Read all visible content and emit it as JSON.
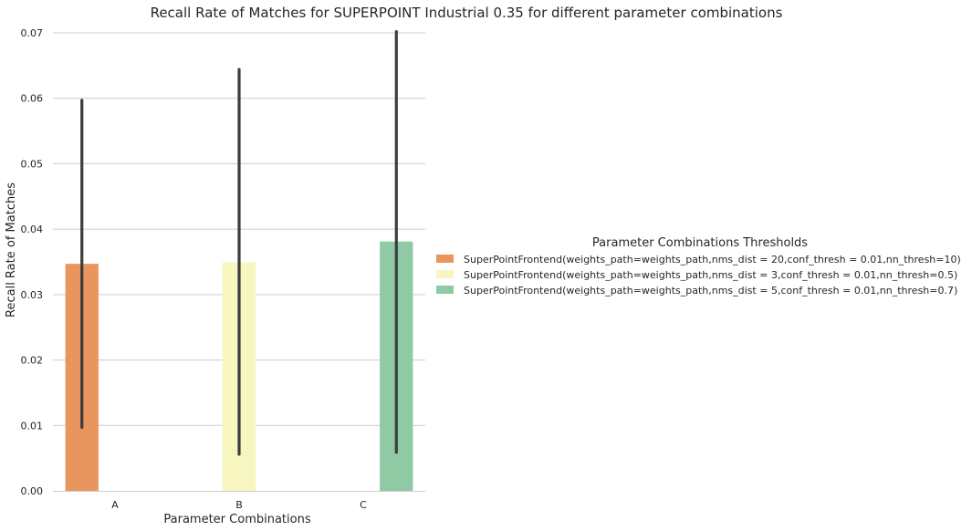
{
  "chart_data": {
    "type": "bar",
    "title": "Recall Rate of Matches for SUPERPOINT Industrial 0.35 for different parameter combinations",
    "xlabel": "Parameter Combinations",
    "ylabel": "Recall Rate of Matches",
    "categories": [
      "A",
      "B",
      "C"
    ],
    "ylim": [
      0,
      0.07
    ],
    "yticks": [
      0.0,
      0.01,
      0.02,
      0.03,
      0.04,
      0.05,
      0.06,
      0.07
    ],
    "ytick_labels": [
      "0.00",
      "0.01",
      "0.02",
      "0.03",
      "0.04",
      "0.05",
      "0.06",
      "0.07"
    ],
    "grid": "horizontal",
    "legend": {
      "title": "Parameter Combinations Thresholds",
      "placement": "right"
    },
    "series": [
      {
        "name": "SuperPointFrontend(weights_path=weights_path,nms_dist = 20,conf_thresh = 0.01,nn_thresh=10)",
        "color": "#e8955f",
        "values": [
          0.0347,
          null,
          null
        ],
        "error_low": [
          0.0097,
          null,
          null
        ],
        "error_high": [
          0.0597,
          null,
          null
        ]
      },
      {
        "name": "SuperPointFrontend(weights_path=weights_path,nms_dist = 3,conf_thresh = 0.01,nn_thresh=0.5)",
        "color": "#f7f6c0",
        "values": [
          null,
          0.0349,
          null
        ],
        "error_low": [
          null,
          0.0056,
          null
        ],
        "error_high": [
          null,
          0.0644,
          null
        ]
      },
      {
        "name": "SuperPointFrontend(weights_path=weights_path,nms_dist = 5,conf_thresh = 0.01,nn_thresh=0.7)",
        "color": "#8fcaa5",
        "values": [
          null,
          null,
          0.0381
        ],
        "error_low": [
          null,
          null,
          0.0059
        ],
        "error_high": [
          null,
          null,
          0.0702
        ]
      }
    ]
  }
}
